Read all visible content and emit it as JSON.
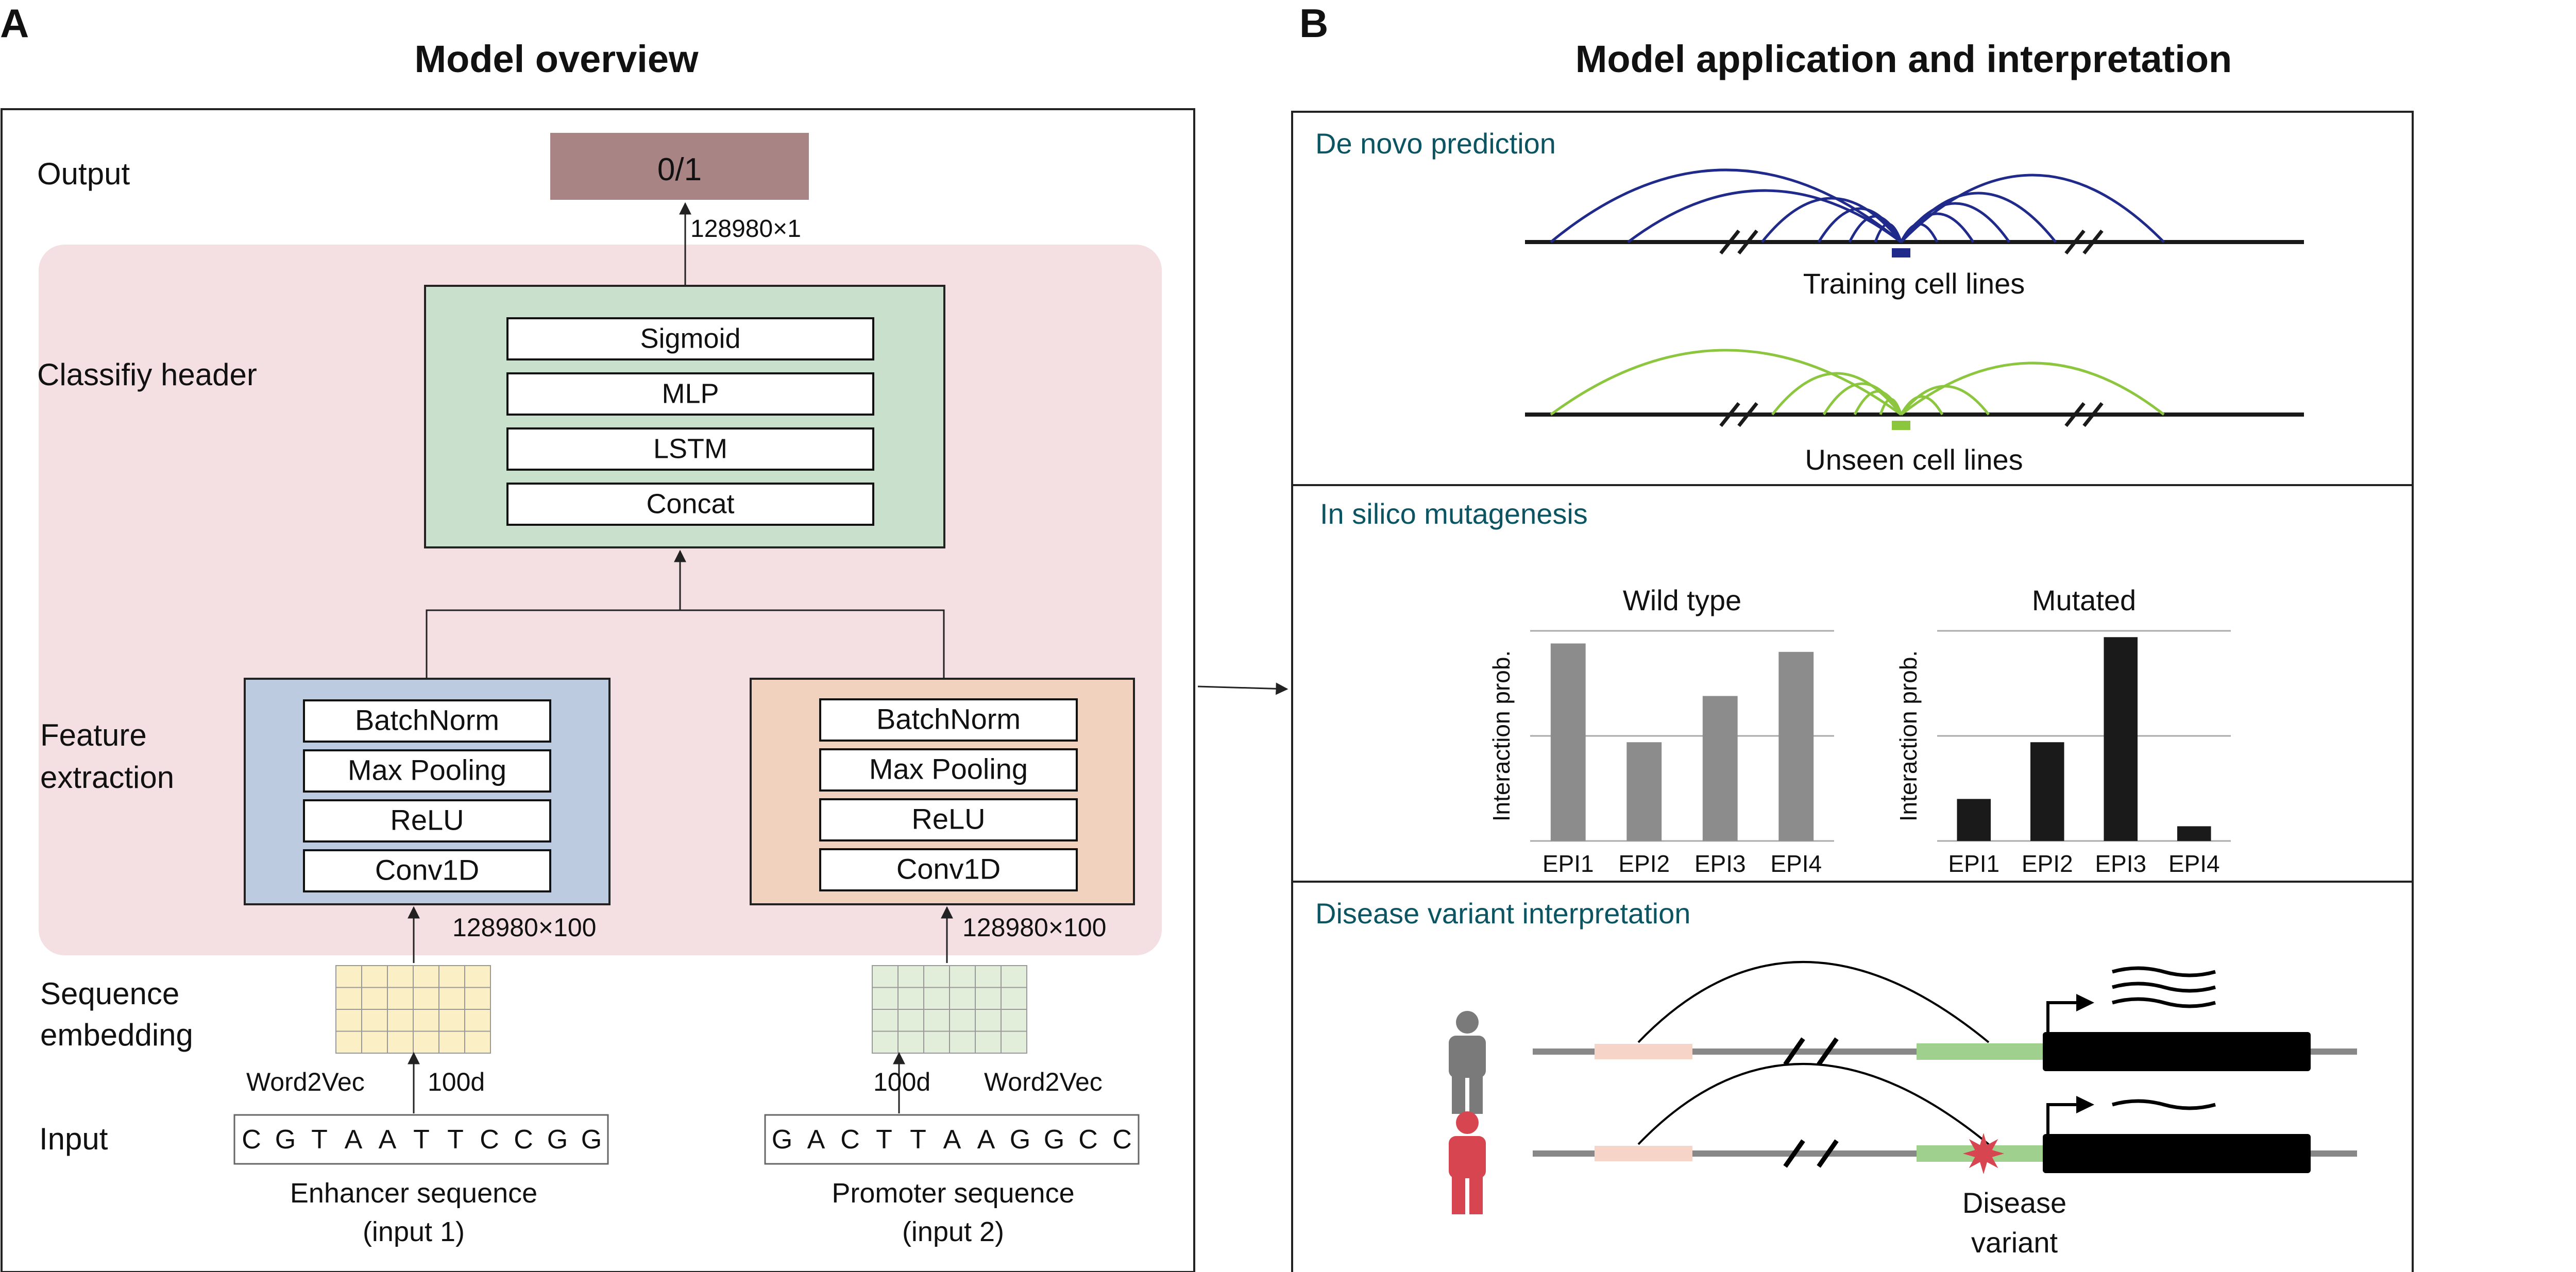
{
  "panel_a": {
    "letter": "A",
    "title": "Model overview",
    "rows": {
      "output": "Output",
      "classify": "Classifiy header",
      "feature_1": "Feature",
      "feature_2": "extraction",
      "sequence_1": "Sequence",
      "sequence_2": "embedding",
      "input": "Input"
    },
    "output_value": "0/1",
    "output_dim": "128980×1",
    "classifier_layers": [
      "Sigmoid",
      "MLP",
      "LSTM",
      "Concat"
    ],
    "feature_layers": [
      "BatchNorm",
      "Max Pooling",
      "ReLU",
      "Conv1D"
    ],
    "feature_dim_left": "128980×100",
    "feature_dim_right": "128980×100",
    "left_embed_labels": {
      "method": "Word2Vec",
      "size": "100d"
    },
    "right_embed_labels": {
      "size": "100d",
      "method": "Word2Vec"
    },
    "enhancer_sequence": [
      "C",
      "G",
      "T",
      "A",
      "A",
      "T",
      "T",
      "C",
      "C",
      "G",
      "G"
    ],
    "promoter_sequence": [
      "G",
      "A",
      "C",
      "T",
      "T",
      "A",
      "A",
      "G",
      "G",
      "C",
      "C"
    ],
    "enhancer_label_1": "Enhancer sequence",
    "enhancer_label_2": "(input 1)",
    "promoter_label_1": "Promoter sequence",
    "promoter_label_2": "(input 2)",
    "colors": {
      "output": "#a88484",
      "background": "#f4e0e2",
      "classifier": "#c9e0cc",
      "feature_left": "#bccbdf",
      "feature_right": "#f0d2bf",
      "embed_left": "#fbefc6",
      "embed_right": "#e2eed9"
    }
  },
  "panel_b": {
    "letter": "B",
    "title": "Model application and interpretation",
    "de_novo": {
      "title": "De novo prediction",
      "training_label": "Training cell lines",
      "unseen_label": "Unseen cell lines",
      "training_color": "#1f2a8a",
      "unseen_color": "#8cc63f"
    },
    "mutagenesis": {
      "title": "In silico mutagenesis",
      "ylabel": "Interaction prob."
    },
    "disease": {
      "title": "Disease variant interpretation",
      "variant_1": "Disease",
      "variant_2": "variant",
      "healthy_color": "#7a7a7a",
      "disease_color": "#d64550"
    }
  },
  "chart_data": [
    {
      "type": "bar",
      "title": "Wild type",
      "xlabel": "",
      "ylabel": "Interaction prob.",
      "categories": [
        "EPI1",
        "EPI2",
        "EPI3",
        "EPI4"
      ],
      "values": [
        0.94,
        0.47,
        0.69,
        0.9
      ],
      "ylim": [
        0,
        1
      ],
      "grid": true,
      "color": "#8c8c8c"
    },
    {
      "type": "bar",
      "title": "Mutated",
      "xlabel": "",
      "ylabel": "Interaction prob.",
      "categories": [
        "EPI1",
        "EPI2",
        "EPI3",
        "EPI4"
      ],
      "values": [
        0.2,
        0.47,
        0.97,
        0.07
      ],
      "ylim": [
        0,
        1
      ],
      "grid": true,
      "color": "#1a1a1a"
    }
  ]
}
